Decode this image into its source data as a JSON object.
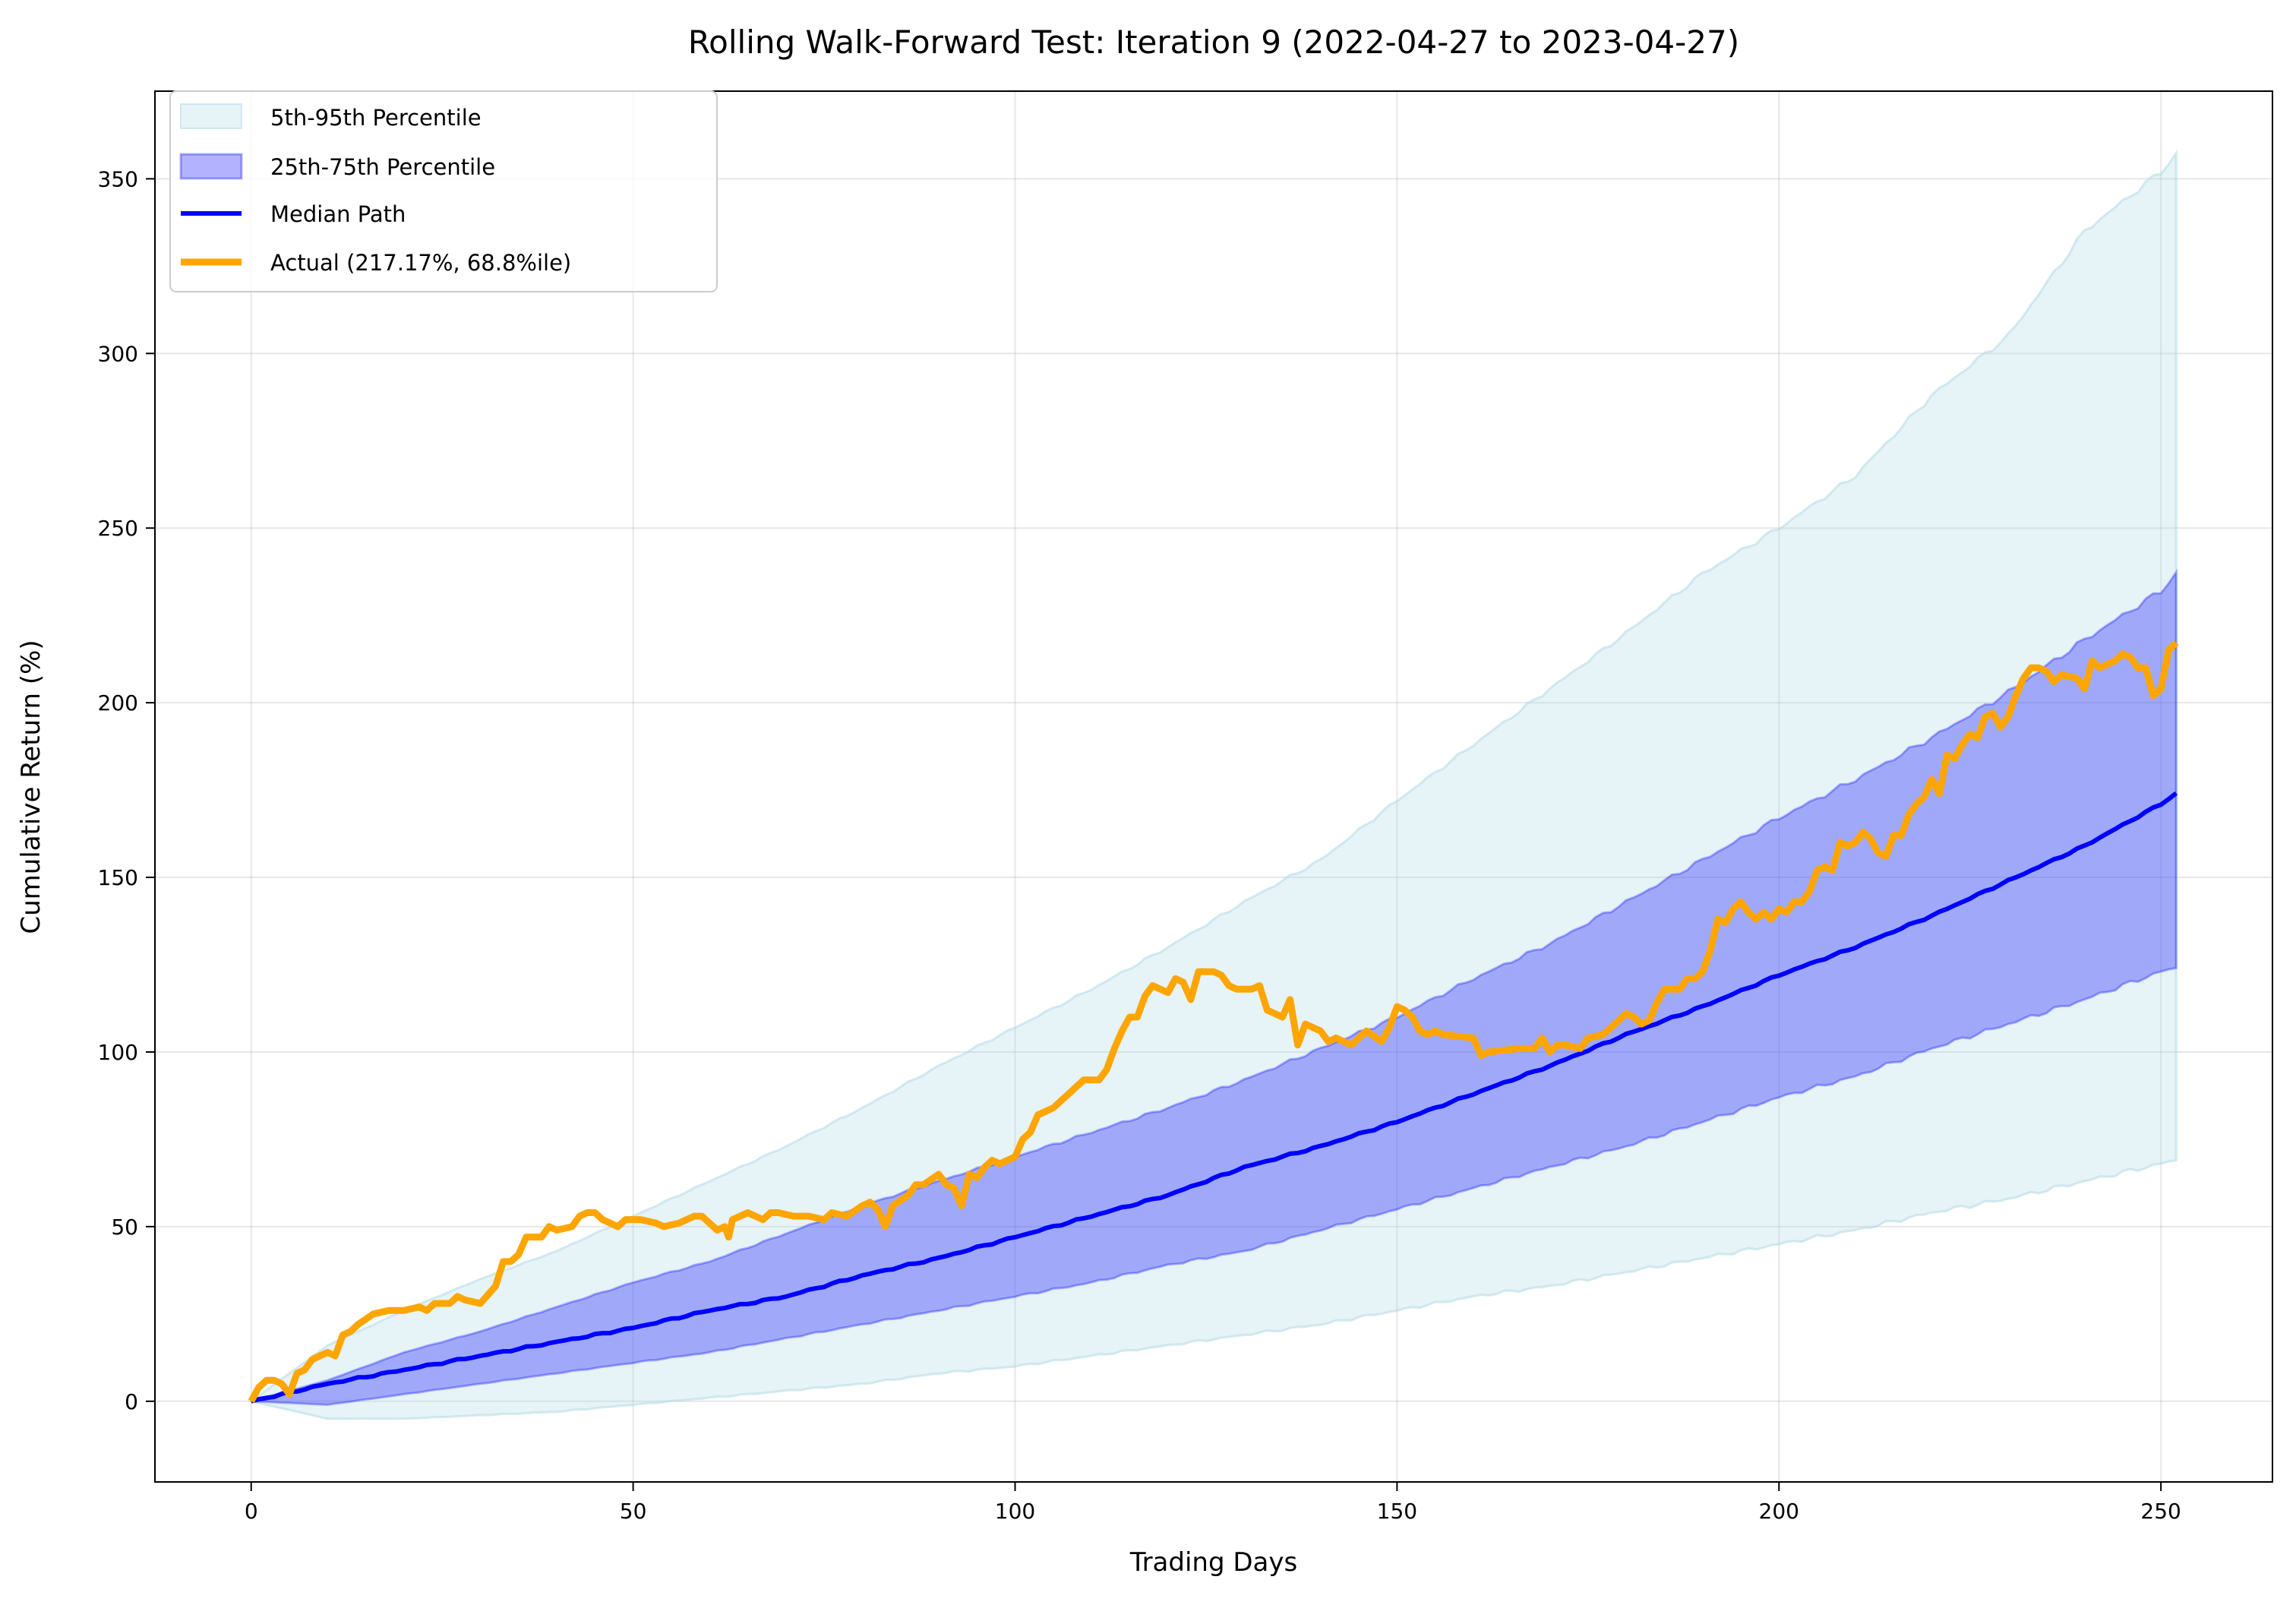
{
  "chart_data": {
    "type": "line",
    "title": "Rolling Walk-Forward Test: Iteration 9 (2022-04-27 to 2023-04-27)",
    "xlabel": "Trading Days",
    "ylabel": "Cumulative Return (%)",
    "xlim": [
      -12.6,
      264.6
    ],
    "ylim": [
      -23.1,
      375.1
    ],
    "xticks": [
      0,
      50,
      100,
      150,
      200,
      250
    ],
    "yticks": [
      0,
      50,
      100,
      150,
      200,
      250,
      300,
      350
    ],
    "grid": true,
    "legend_position": "top-left",
    "legend": [
      "5th-95th Percentile",
      "25th-75th Percentile",
      "Median Path",
      "Actual (217.17%, 68.8%ile)"
    ],
    "colors": {
      "band_outer": "#add8e6",
      "band_inner": "#0000ff",
      "median": "#0000ff",
      "actual": "#ffa500"
    },
    "band_x": [
      0,
      10,
      20,
      30,
      40,
      50,
      60,
      70,
      80,
      90,
      100,
      110,
      120,
      130,
      140,
      150,
      160,
      170,
      180,
      190,
      200,
      210,
      220,
      230,
      240,
      250,
      252
    ],
    "p95": [
      0,
      16,
      26,
      35,
      43,
      53,
      63,
      73,
      84,
      96,
      107,
      118,
      130,
      143,
      155,
      172,
      188,
      204,
      220,
      237,
      250,
      265,
      288,
      305,
      335,
      352,
      357
    ],
    "p5": [
      0,
      -5,
      -5,
      -4,
      -3,
      -1,
      1,
      3,
      5,
      8,
      10,
      13,
      16,
      19,
      22,
      26,
      30,
      33,
      37,
      41,
      45,
      49,
      54,
      58,
      63,
      68,
      69
    ],
    "p75": [
      0,
      6,
      14,
      20,
      27,
      34,
      40,
      48,
      56,
      63,
      70,
      77,
      84,
      92,
      101,
      110,
      121,
      131,
      143,
      155,
      167,
      178,
      190,
      203,
      218,
      232,
      237
    ],
    "p25": [
      0,
      -1,
      2,
      5,
      8,
      11,
      14,
      18,
      22,
      26,
      30,
      34,
      39,
      43,
      49,
      55,
      61,
      67,
      73,
      80,
      87,
      93,
      101,
      108,
      115,
      123,
      124
    ],
    "median": [
      0,
      5,
      9,
      13,
      17,
      21,
      26,
      30,
      36,
      41,
      47,
      53,
      59,
      67,
      73,
      80,
      88,
      96,
      105,
      113,
      122,
      130,
      139,
      149,
      159,
      171,
      174
    ],
    "actual": [
      [
        0,
        0
      ],
      [
        1,
        4
      ],
      [
        2,
        6
      ],
      [
        3,
        6
      ],
      [
        4,
        5
      ],
      [
        5,
        2
      ],
      [
        6,
        8
      ],
      [
        7,
        9
      ],
      [
        8,
        12
      ],
      [
        9,
        13
      ],
      [
        10,
        14
      ],
      [
        11,
        13
      ],
      [
        12,
        19
      ],
      [
        13,
        20
      ],
      [
        14,
        22
      ],
      [
        16,
        25
      ],
      [
        18,
        26
      ],
      [
        20,
        26
      ],
      [
        22,
        27
      ],
      [
        23,
        26
      ],
      [
        24,
        28
      ],
      [
        26,
        28
      ],
      [
        27,
        30
      ],
      [
        28,
        29
      ],
      [
        30,
        28
      ],
      [
        32,
        33
      ],
      [
        33,
        40
      ],
      [
        34,
        40
      ],
      [
        35,
        42
      ],
      [
        36,
        47
      ],
      [
        38,
        47
      ],
      [
        39,
        50
      ],
      [
        40,
        49
      ],
      [
        42,
        50
      ],
      [
        43,
        53
      ],
      [
        44,
        54
      ],
      [
        45,
        54
      ],
      [
        46,
        52
      ],
      [
        48,
        50
      ],
      [
        49,
        52
      ],
      [
        51,
        52
      ],
      [
        53,
        51
      ],
      [
        54,
        50
      ],
      [
        56,
        51
      ],
      [
        58,
        53
      ],
      [
        59,
        53
      ],
      [
        61,
        49
      ],
      [
        62,
        50
      ],
      [
        62.5,
        47
      ],
      [
        63,
        52
      ],
      [
        65,
        54
      ],
      [
        67,
        52
      ],
      [
        68,
        54
      ],
      [
        69,
        54
      ],
      [
        71,
        53
      ],
      [
        73,
        53
      ],
      [
        75,
        52
      ],
      [
        76,
        54
      ],
      [
        78,
        53
      ],
      [
        80,
        56
      ],
      [
        81,
        57
      ],
      [
        82,
        55
      ],
      [
        83,
        50
      ],
      [
        84,
        56
      ],
      [
        86,
        59
      ],
      [
        87,
        62
      ],
      [
        88,
        62
      ],
      [
        90,
        65
      ],
      [
        91,
        62
      ],
      [
        92,
        61
      ],
      [
        93,
        56
      ],
      [
        94,
        65
      ],
      [
        95,
        64
      ],
      [
        96,
        67
      ],
      [
        97,
        69
      ],
      [
        98,
        68
      ],
      [
        100,
        70
      ],
      [
        101,
        75
      ],
      [
        102,
        77
      ],
      [
        103,
        82
      ],
      [
        104,
        83
      ],
      [
        105,
        84
      ],
      [
        106,
        86
      ],
      [
        107,
        88
      ],
      [
        108,
        90
      ],
      [
        109,
        92
      ],
      [
        111,
        92
      ],
      [
        112,
        95
      ],
      [
        113,
        101
      ],
      [
        114,
        106
      ],
      [
        115,
        110
      ],
      [
        116,
        110
      ],
      [
        117,
        116
      ],
      [
        118,
        119
      ],
      [
        119,
        118
      ],
      [
        120,
        117
      ],
      [
        121,
        121
      ],
      [
        122,
        120
      ],
      [
        123,
        115
      ],
      [
        124,
        123
      ],
      [
        126,
        123
      ],
      [
        127,
        122
      ],
      [
        128,
        119
      ],
      [
        129,
        118
      ],
      [
        131,
        118
      ],
      [
        132,
        119
      ],
      [
        133,
        112
      ],
      [
        135,
        110
      ],
      [
        136,
        115
      ],
      [
        137,
        102
      ],
      [
        138,
        108
      ],
      [
        139,
        107
      ],
      [
        140,
        106
      ],
      [
        141,
        103
      ],
      [
        142,
        104
      ],
      [
        144,
        102
      ],
      [
        146,
        106
      ],
      [
        148,
        103
      ],
      [
        149,
        107
      ],
      [
        150,
        113
      ],
      [
        151,
        112
      ],
      [
        152,
        110
      ],
      [
        153,
        106
      ],
      [
        154,
        105
      ],
      [
        155,
        106
      ],
      [
        156,
        105
      ],
      [
        160,
        104
      ],
      [
        161,
        99
      ],
      [
        162,
        100
      ],
      [
        166,
        101
      ],
      [
        168,
        101
      ],
      [
        169,
        104
      ],
      [
        170,
        100
      ],
      [
        171,
        102
      ],
      [
        172,
        102
      ],
      [
        174,
        101
      ],
      [
        175,
        104
      ],
      [
        177,
        105
      ],
      [
        178,
        107
      ],
      [
        179,
        109
      ],
      [
        180,
        111
      ],
      [
        181,
        110
      ],
      [
        182,
        108
      ],
      [
        183,
        109
      ],
      [
        184,
        114
      ],
      [
        185,
        118
      ],
      [
        187,
        118
      ],
      [
        188,
        121
      ],
      [
        189,
        121
      ],
      [
        190,
        123
      ],
      [
        191,
        129
      ],
      [
        192,
        138
      ],
      [
        193,
        137
      ],
      [
        194,
        141
      ],
      [
        195,
        143
      ],
      [
        196,
        140
      ],
      [
        197,
        138
      ],
      [
        198,
        140
      ],
      [
        199,
        138
      ],
      [
        200,
        141
      ],
      [
        201,
        140
      ],
      [
        202,
        143
      ],
      [
        203,
        143
      ],
      [
        204,
        146
      ],
      [
        205,
        152
      ],
      [
        206,
        153
      ],
      [
        207,
        152
      ],
      [
        208,
        160
      ],
      [
        209,
        159
      ],
      [
        210,
        160
      ],
      [
        211,
        163
      ],
      [
        212,
        161
      ],
      [
        213,
        157
      ],
      [
        214,
        156
      ],
      [
        215,
        162
      ],
      [
        216,
        162
      ],
      [
        217,
        168
      ],
      [
        218,
        171
      ],
      [
        219,
        173
      ],
      [
        220,
        178
      ],
      [
        221,
        174
      ],
      [
        222,
        185
      ],
      [
        223,
        184
      ],
      [
        224,
        188
      ],
      [
        225,
        191
      ],
      [
        226,
        190
      ],
      [
        227,
        196
      ],
      [
        228,
        197
      ],
      [
        229,
        193
      ],
      [
        230,
        196
      ],
      [
        231,
        202
      ],
      [
        232,
        207
      ],
      [
        233,
        210
      ],
      [
        234,
        210
      ],
      [
        235,
        209
      ],
      [
        236,
        206
      ],
      [
        237,
        208
      ],
      [
        239,
        207
      ],
      [
        240,
        204
      ],
      [
        241,
        212
      ],
      [
        242,
        210
      ],
      [
        243,
        211
      ],
      [
        244,
        212
      ],
      [
        245,
        214
      ],
      [
        246,
        213
      ],
      [
        247,
        210
      ],
      [
        248,
        210
      ],
      [
        249,
        202
      ],
      [
        250,
        204
      ],
      [
        251,
        215
      ],
      [
        252,
        217.17
      ]
    ]
  }
}
